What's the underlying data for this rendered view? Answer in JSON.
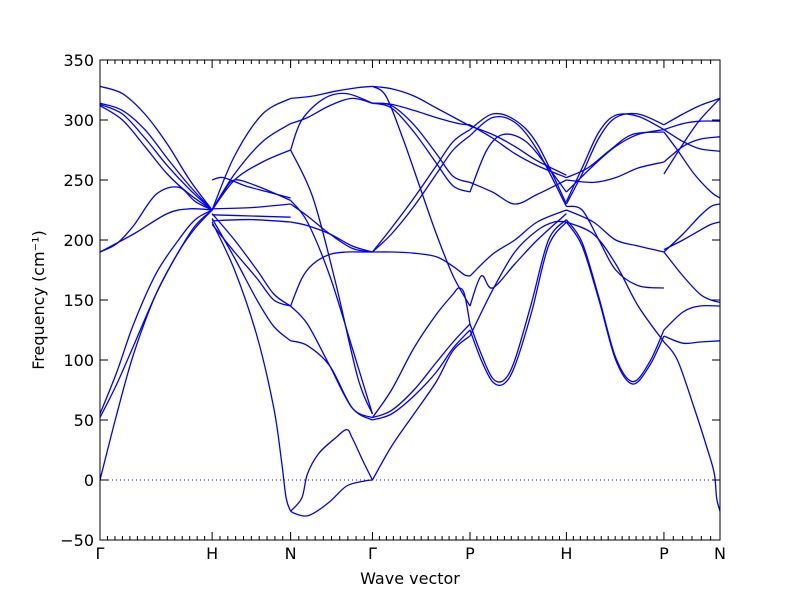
{
  "chart_data": {
    "type": "line",
    "title": "",
    "xlabel": "Wave vector",
    "ylabel": "Frequency (cm⁻¹)",
    "ylim": [
      -50,
      350
    ],
    "yticks": [
      -50,
      0,
      50,
      100,
      150,
      200,
      250,
      300,
      350
    ],
    "ytick_labels": [
      "−50",
      "0",
      "50",
      "100",
      "150",
      "200",
      "250",
      "300",
      "350"
    ],
    "path": [
      {
        "label": "Γ",
        "x": 0.0
      },
      {
        "label": "H",
        "x": 1.0
      },
      {
        "label": "N",
        "x": 1.7
      },
      {
        "label": "Γ",
        "x": 2.43
      },
      {
        "label": "P",
        "x": 3.3
      },
      {
        "label": "H",
        "x": 4.16
      },
      {
        "label": "P",
        "x": 5.03
      },
      {
        "label": "N",
        "x": 5.53
      }
    ],
    "xlim": [
      0.0,
      5.53
    ],
    "minor_ticks_per_segment": [
      15,
      10,
      10,
      14,
      14,
      14,
      6
    ],
    "zero_line": {
      "y": 0,
      "style": "dotted",
      "color": "#0000ff"
    },
    "line_color": "#0000ff",
    "series": [
      {
        "x": [
          0,
          0.15,
          0.3,
          0.5,
          0.7,
          0.85,
          1.0
        ],
        "y": [
          0,
          55,
          105,
          155,
          190,
          212,
          225
        ]
      },
      {
        "x": [
          0,
          0.15,
          0.3,
          0.5,
          0.7,
          0.85,
          1.0
        ],
        "y": [
          52,
          80,
          112,
          155,
          190,
          210,
          225
        ]
      },
      {
        "x": [
          0,
          0.15,
          0.3,
          0.5,
          0.7,
          0.85,
          1.0
        ],
        "y": [
          55,
          90,
          130,
          172,
          200,
          217,
          225
        ]
      },
      {
        "x": [
          0,
          0.15,
          0.3,
          0.5,
          0.7,
          0.85,
          1.0
        ],
        "y": [
          190,
          197,
          212,
          238,
          244,
          232,
          225
        ]
      },
      {
        "x": [
          0,
          0.3,
          0.6,
          0.8,
          1.0
        ],
        "y": [
          190,
          205,
          222,
          226,
          225
        ]
      },
      {
        "x": [
          0,
          0.2,
          0.4,
          0.6,
          0.8,
          1.0
        ],
        "y": [
          328,
          322,
          305,
          280,
          250,
          225
        ]
      },
      {
        "x": [
          0,
          0.2,
          0.4,
          0.6,
          0.8,
          1.0
        ],
        "y": [
          314,
          308,
          292,
          268,
          245,
          225
        ]
      },
      {
        "x": [
          0,
          0.2,
          0.4,
          0.6,
          0.8,
          1.0
        ],
        "y": [
          313,
          305,
          285,
          262,
          242,
          225
        ]
      },
      {
        "x": [
          0,
          0.2,
          0.4,
          0.6,
          0.8,
          1.0
        ],
        "y": [
          312,
          300,
          278,
          255,
          238,
          225
        ]
      },
      {
        "x": [
          1.0,
          1.2,
          1.4,
          1.55,
          1.62,
          1.66,
          1.7
        ],
        "y": [
          215,
          175,
          120,
          60,
          15,
          -15,
          -26
        ]
      },
      {
        "x": [
          1.0,
          1.2,
          1.4,
          1.55,
          1.7
        ],
        "y": [
          218,
          185,
          150,
          128,
          116
        ]
      },
      {
        "x": [
          1.0,
          1.2,
          1.4,
          1.55,
          1.7
        ],
        "y": [
          213,
          190,
          168,
          150,
          145
        ]
      },
      {
        "x": [
          1.0,
          1.2,
          1.4,
          1.55,
          1.7
        ],
        "y": [
          222,
          200,
          175,
          155,
          145
        ]
      },
      {
        "x": [
          1.0,
          1.35,
          1.7
        ],
        "y": [
          216,
          217,
          215
        ]
      },
      {
        "x": [
          1.0,
          1.35,
          1.7
        ],
        "y": [
          221,
          220,
          219
        ]
      },
      {
        "x": [
          1.0,
          1.35,
          1.7
        ],
        "y": [
          226,
          227,
          230
        ]
      },
      {
        "x": [
          1.0,
          1.1,
          1.2,
          1.4,
          1.7
        ],
        "y": [
          225,
          240,
          250,
          245,
          233
        ]
      },
      {
        "x": [
          1.0,
          1.1,
          1.3,
          1.5,
          1.7
        ],
        "y": [
          250,
          252,
          245,
          240,
          235
        ]
      },
      {
        "x": [
          1.0,
          1.2,
          1.45,
          1.7
        ],
        "y": [
          225,
          250,
          265,
          275
        ]
      },
      {
        "x": [
          1.0,
          1.2,
          1.45,
          1.7
        ],
        "y": [
          225,
          255,
          282,
          297
        ]
      },
      {
        "x": [
          1.0,
          1.2,
          1.45,
          1.7
        ],
        "y": [
          225,
          270,
          305,
          318
        ]
      },
      {
        "x": [
          1.7,
          1.85,
          2.05,
          2.25,
          2.43
        ],
        "y": [
          116,
          112,
          95,
          60,
          50
        ]
      },
      {
        "x": [
          1.7,
          1.85,
          2.05,
          2.25,
          2.43
        ],
        "y": [
          145,
          130,
          95,
          60,
          52
        ]
      },
      {
        "x": [
          1.7,
          1.8,
          1.9,
          2.05,
          2.2,
          2.35,
          2.43
        ],
        "y": [
          145,
          168,
          180,
          188,
          190,
          190,
          190
        ]
      },
      {
        "x": [
          1.7,
          1.85,
          2.05,
          2.25,
          2.43
        ],
        "y": [
          215,
          212,
          205,
          195,
          190
        ]
      },
      {
        "x": [
          1.7,
          1.85,
          2.05,
          2.25,
          2.43
        ],
        "y": [
          230,
          220,
          205,
          193,
          190
        ]
      },
      {
        "x": [
          1.7,
          1.85,
          2.05,
          2.25,
          2.43
        ],
        "y": [
          233,
          215,
          170,
          110,
          55
        ]
      },
      {
        "x": [
          1.7,
          1.9,
          2.1,
          2.3,
          2.43
        ],
        "y": [
          275,
          235,
          165,
          85,
          55
        ]
      },
      {
        "x": [
          1.7,
          1.8,
          2.0,
          2.2,
          2.43
        ],
        "y": [
          275,
          300,
          318,
          322,
          314
        ]
      },
      {
        "x": [
          1.7,
          1.85,
          2.05,
          2.25,
          2.43
        ],
        "y": [
          297,
          302,
          312,
          318,
          314
        ]
      },
      {
        "x": [
          1.7,
          1.9,
          2.1,
          2.3,
          2.43
        ],
        "y": [
          318,
          320,
          324,
          327,
          328
        ]
      },
      {
        "x": [
          1.7,
          1.74,
          1.82,
          1.9,
          2.05,
          2.2,
          2.35,
          2.43
        ],
        "y": [
          -26,
          -28,
          -30,
          -28,
          -18,
          -5,
          -1,
          0
        ]
      },
      {
        "x": [
          1.7,
          1.8,
          1.85,
          1.95,
          2.1,
          2.2,
          2.25,
          2.35,
          2.43
        ],
        "y": [
          -26,
          -15,
          5,
          22,
          35,
          42,
          35,
          15,
          0
        ]
      },
      {
        "x": [
          2.43,
          2.6,
          2.8,
          3.0,
          3.15,
          3.3
        ],
        "y": [
          0,
          28,
          55,
          82,
          108,
          120
        ]
      },
      {
        "x": [
          2.43,
          2.6,
          2.8,
          3.0,
          3.15,
          3.3
        ],
        "y": [
          50,
          55,
          70,
          90,
          110,
          125
        ]
      },
      {
        "x": [
          2.43,
          2.6,
          2.8,
          3.0,
          3.15,
          3.3
        ],
        "y": [
          52,
          58,
          75,
          98,
          115,
          130
        ]
      },
      {
        "x": [
          2.43,
          2.6,
          2.8,
          3.0,
          3.15,
          3.2,
          3.25,
          3.3
        ],
        "y": [
          52,
          75,
          110,
          138,
          155,
          160,
          155,
          130
        ]
      },
      {
        "x": [
          2.43,
          2.6,
          2.8,
          3.0,
          3.15,
          3.25,
          3.3
        ],
        "y": [
          190,
          190,
          189,
          186,
          178,
          171,
          170
        ]
      },
      {
        "x": [
          2.43,
          2.6,
          2.8,
          3.0,
          3.15,
          3.3
        ],
        "y": [
          190,
          205,
          228,
          255,
          275,
          287
        ]
      },
      {
        "x": [
          2.43,
          2.6,
          2.8,
          3.0,
          3.15,
          3.3
        ],
        "y": [
          190,
          210,
          235,
          262,
          282,
          292
        ]
      },
      {
        "x": [
          2.43,
          2.6,
          2.8,
          3.0,
          3.15,
          3.3
        ],
        "y": [
          314,
          310,
          290,
          264,
          245,
          240
        ]
      },
      {
        "x": [
          2.43,
          2.6,
          2.8,
          3.0,
          3.15,
          3.3
        ],
        "y": [
          314,
          312,
          296,
          272,
          253,
          248
        ]
      },
      {
        "x": [
          2.43,
          2.6,
          2.8,
          3.0,
          3.2,
          3.3
        ],
        "y": [
          314,
          313,
          308,
          302,
          297,
          296
        ]
      },
      {
        "x": [
          2.43,
          2.6,
          2.8,
          3.0,
          3.2,
          3.3
        ],
        "y": [
          328,
          326,
          320,
          310,
          300,
          295
        ]
      },
      {
        "x": [
          2.43,
          2.55,
          2.7,
          2.85,
          3.0,
          3.15,
          3.3
        ],
        "y": [
          328,
          320,
          285,
          245,
          205,
          170,
          145
        ]
      },
      {
        "x": [
          3.3,
          3.5,
          3.7,
          3.9,
          4.05,
          4.16
        ],
        "y": [
          120,
          158,
          190,
          208,
          215,
          215
        ]
      },
      {
        "x": [
          3.3,
          3.4,
          3.5,
          3.6,
          3.7,
          3.85,
          4.0,
          4.16
        ],
        "y": [
          125,
          100,
          82,
          80,
          95,
          140,
          195,
          215
        ]
      },
      {
        "x": [
          3.3,
          3.4,
          3.5,
          3.6,
          3.7,
          3.85,
          4.0,
          4.16
        ],
        "y": [
          130,
          105,
          85,
          83,
          100,
          148,
          200,
          217
        ]
      },
      {
        "x": [
          3.3,
          3.5,
          3.7,
          3.9,
          4.16
        ],
        "y": [
          170,
          188,
          200,
          215,
          225
        ]
      },
      {
        "x": [
          3.3,
          3.5,
          3.7,
          3.9,
          4.16
        ],
        "y": [
          287,
          302,
          298,
          275,
          228
        ]
      },
      {
        "x": [
          3.3,
          3.5,
          3.7,
          3.9,
          4.16
        ],
        "y": [
          292,
          305,
          300,
          280,
          230
        ]
      },
      {
        "x": [
          3.3,
          3.45,
          3.6,
          3.8,
          4.0,
          4.16
        ],
        "y": [
          240,
          275,
          288,
          282,
          260,
          240
        ]
      },
      {
        "x": [
          3.3,
          3.5,
          3.7,
          3.9,
          4.16
        ],
        "y": [
          248,
          240,
          230,
          238,
          250
        ]
      },
      {
        "x": [
          3.3,
          3.5,
          3.7,
          3.9,
          4.16
        ],
        "y": [
          296,
          285,
          272,
          262,
          252
        ]
      },
      {
        "x": [
          3.3,
          3.5,
          3.7,
          3.9,
          4.16
        ],
        "y": [
          295,
          288,
          278,
          266,
          254
        ]
      },
      {
        "x": [
          3.3,
          3.4,
          3.5,
          3.7,
          3.9,
          4.16
        ],
        "y": [
          145,
          170,
          160,
          180,
          200,
          222
        ]
      },
      {
        "x": [
          4.16,
          4.3,
          4.45,
          4.6,
          4.75,
          4.9,
          5.03
        ],
        "y": [
          215,
          195,
          150,
          100,
          80,
          95,
          120
        ]
      },
      {
        "x": [
          4.16,
          4.3,
          4.45,
          4.6,
          4.75,
          4.9,
          5.03
        ],
        "y": [
          217,
          198,
          152,
          102,
          82,
          98,
          125
        ]
      },
      {
        "x": [
          4.16,
          4.4,
          4.6,
          4.8,
          5.03
        ],
        "y": [
          215,
          205,
          180,
          145,
          115
        ]
      },
      {
        "x": [
          4.16,
          4.4,
          4.6,
          4.8,
          5.03
        ],
        "y": [
          225,
          215,
          200,
          195,
          190
        ]
      },
      {
        "x": [
          4.16,
          4.3,
          4.45,
          4.6,
          4.8,
          5.03
        ],
        "y": [
          228,
          225,
          200,
          175,
          162,
          160
        ]
      },
      {
        "x": [
          4.16,
          4.3,
          4.45,
          4.6,
          4.8,
          5.03
        ],
        "y": [
          230,
          255,
          285,
          302,
          305,
          296
        ]
      },
      {
        "x": [
          4.16,
          4.3,
          4.45,
          4.6,
          4.8,
          5.03
        ],
        "y": [
          232,
          260,
          290,
          304,
          303,
          292
        ]
      },
      {
        "x": [
          4.16,
          4.4,
          4.6,
          4.8,
          5.03
        ],
        "y": [
          240,
          262,
          278,
          288,
          292
        ]
      },
      {
        "x": [
          4.16,
          4.4,
          4.6,
          4.8,
          5.03
        ],
        "y": [
          250,
          248,
          252,
          260,
          265
        ]
      },
      {
        "x": [
          4.16,
          4.35,
          4.55,
          4.75,
          5.03
        ],
        "y": [
          252,
          260,
          275,
          288,
          290
        ]
      },
      {
        "x": [
          5.03,
          5.15,
          5.3,
          5.42,
          5.48,
          5.5,
          5.53
        ],
        "y": [
          115,
          100,
          60,
          25,
          5,
          -15,
          -26
        ]
      },
      {
        "x": [
          5.03,
          5.2,
          5.35,
          5.53
        ],
        "y": [
          120,
          114,
          115,
          116
        ]
      },
      {
        "x": [
          5.03,
          5.2,
          5.35,
          5.53
        ],
        "y": [
          125,
          140,
          145,
          145
        ]
      },
      {
        "x": [
          5.03,
          5.2,
          5.35,
          5.45,
          5.53
        ],
        "y": [
          190,
          170,
          155,
          150,
          148
        ]
      },
      {
        "x": [
          5.03,
          5.2,
          5.35,
          5.45,
          5.53
        ],
        "y": [
          190,
          205,
          220,
          228,
          230
        ]
      },
      {
        "x": [
          5.03,
          5.2,
          5.35,
          5.45,
          5.53
        ],
        "y": [
          192,
          200,
          208,
          213,
          215
        ]
      },
      {
        "x": [
          5.03,
          5.2,
          5.35,
          5.53
        ],
        "y": [
          255,
          280,
          300,
          318
        ]
      },
      {
        "x": [
          5.03,
          5.2,
          5.35,
          5.53
        ],
        "y": [
          296,
          305,
          312,
          318
        ]
      },
      {
        "x": [
          5.03,
          5.2,
          5.35,
          5.53
        ],
        "y": [
          292,
          297,
          299,
          299
        ]
      },
      {
        "x": [
          5.03,
          5.2,
          5.35,
          5.53
        ],
        "y": [
          292,
          282,
          276,
          274
        ]
      },
      {
        "x": [
          5.03,
          5.2,
          5.35,
          5.53
        ],
        "y": [
          265,
          278,
          284,
          286
        ]
      },
      {
        "x": [
          5.03,
          5.15,
          5.3,
          5.45,
          5.53
        ],
        "y": [
          290,
          275,
          255,
          240,
          235
        ]
      }
    ]
  }
}
